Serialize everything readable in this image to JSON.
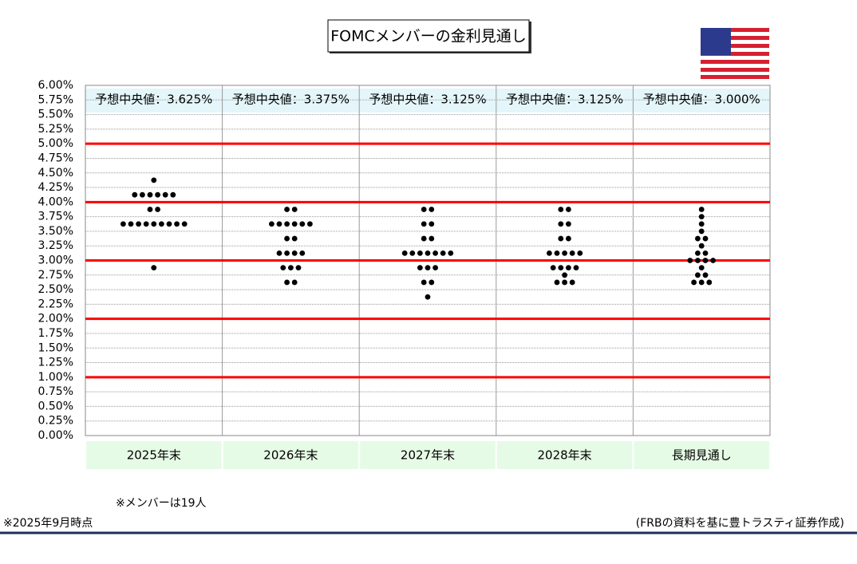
{
  "chart_data": {
    "type": "dot_plot",
    "title": "FOMCメンバーの金利見通し",
    "categories": [
      "2025年末",
      "2026年末",
      "2027年末",
      "2028年末",
      "長期見通し"
    ],
    "dots": [
      [
        4.375,
        4.125,
        4.125,
        4.125,
        4.125,
        4.125,
        4.125,
        3.875,
        3.875,
        3.625,
        3.625,
        3.625,
        3.625,
        3.625,
        3.625,
        3.625,
        3.625,
        3.625,
        2.875
      ],
      [
        3.875,
        3.875,
        3.625,
        3.625,
        3.625,
        3.625,
        3.625,
        3.625,
        3.375,
        3.375,
        3.125,
        3.125,
        3.125,
        3.125,
        2.875,
        2.875,
        2.875,
        2.625,
        2.625
      ],
      [
        3.875,
        3.875,
        3.625,
        3.625,
        3.375,
        3.375,
        3.125,
        3.125,
        3.125,
        3.125,
        3.125,
        3.125,
        3.125,
        2.875,
        2.875,
        2.875,
        2.625,
        2.625,
        2.375
      ],
      [
        3.875,
        3.875,
        3.625,
        3.625,
        3.375,
        3.375,
        3.125,
        3.125,
        3.125,
        3.125,
        3.125,
        2.875,
        2.875,
        2.875,
        2.875,
        2.75,
        2.625,
        2.625,
        2.625
      ],
      [
        3.875,
        3.75,
        3.625,
        3.5,
        3.375,
        3.375,
        3.25,
        3.125,
        3.125,
        3.0,
        3.0,
        3.0,
        3.0,
        2.875,
        2.75,
        2.75,
        2.625,
        2.625,
        2.625
      ]
    ],
    "dot_color": "#000000",
    "median_values": [
      3.625,
      3.375,
      3.125,
      3.125,
      3.0
    ],
    "median_labels": [
      "予想中央値：3.625%",
      "予想中央値：3.375%",
      "予想中央値：3.125%",
      "予想中央値：3.125%",
      "予想中央値：3.000%"
    ],
    "ylim": [
      0,
      6
    ],
    "yticks": [
      {
        "value": 0,
        "label": "0.00%"
      },
      {
        "value": 0.25,
        "label": "0.25%"
      },
      {
        "value": 0.5,
        "label": "0.50%"
      },
      {
        "value": 0.75,
        "label": "0.75%"
      },
      {
        "value": 1,
        "label": "1.00%"
      },
      {
        "value": 1.25,
        "label": "1.25%"
      },
      {
        "value": 1.5,
        "label": "1.50%"
      },
      {
        "value": 1.75,
        "label": "1.75%"
      },
      {
        "value": 2,
        "label": "2.00%"
      },
      {
        "value": 2.25,
        "label": "2.25%"
      },
      {
        "value": 2.5,
        "label": "2.50%"
      },
      {
        "value": 2.75,
        "label": "2.75%"
      },
      {
        "value": 3,
        "label": "3.00%"
      },
      {
        "value": 3.25,
        "label": "3.25%"
      },
      {
        "value": 3.5,
        "label": "3.50%"
      },
      {
        "value": 3.75,
        "label": "3.75%"
      },
      {
        "value": 4,
        "label": "4.00%"
      },
      {
        "value": 4.25,
        "label": "4.25%"
      },
      {
        "value": 4.5,
        "label": "4.50%"
      },
      {
        "value": 4.75,
        "label": "4.75%"
      },
      {
        "value": 5,
        "label": "5.00%"
      },
      {
        "value": 5.25,
        "label": "5.25%"
      },
      {
        "value": 5.5,
        "label": "5.50%"
      },
      {
        "value": 5.75,
        "label": "5.75%"
      },
      {
        "value": 6,
        "label": "6.00%"
      }
    ],
    "grid": true,
    "highlight_lines": [
      1,
      2,
      3,
      4,
      5
    ],
    "highlight_color": "#ff0000",
    "note": "※メンバーは19人",
    "date_note": "※2025年9月時点",
    "source": "(FRBの資料を基に豊トラスティ証券作成)"
  }
}
